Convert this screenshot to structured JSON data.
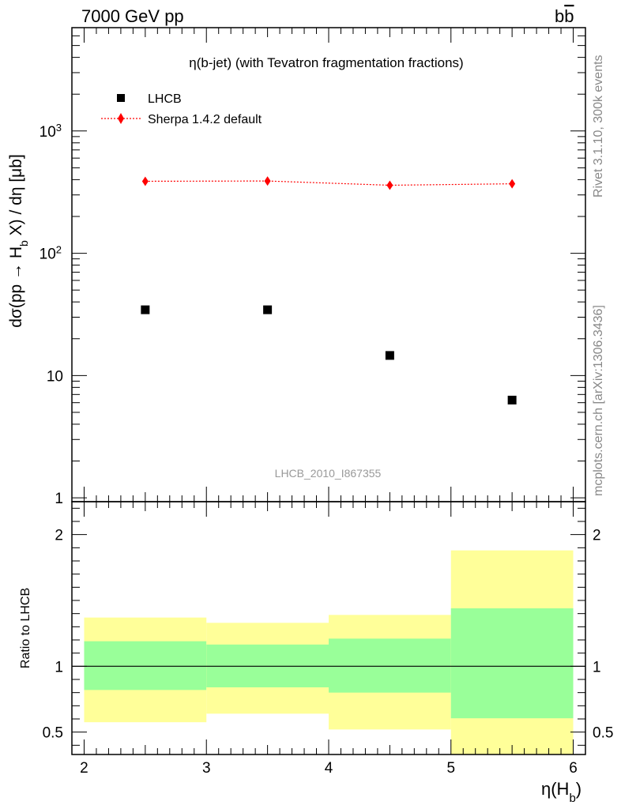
{
  "header": {
    "left": "7000 GeV pp",
    "right": "b",
    "right_bar": "b"
  },
  "side_texts": {
    "rivet": "Rivet 3.1.10,  300k events",
    "mcplots": "mcplots.cern.ch [arXiv:1306.3436]"
  },
  "chart_data": [
    {
      "type": "scatter",
      "title": "η(b-jet) (with Tevatron fragmentation fractions)",
      "watermark": "LHCB_2010_I867355",
      "ylabel": "dσ(pp → H_b X) / dη [μb]",
      "yscale": "log",
      "xlim": [
        1.9,
        6.1
      ],
      "ylim": [
        0.93,
        7000
      ],
      "ytick_labels": [
        {
          "value": 1,
          "label": "1"
        },
        {
          "value": 10,
          "label": "10"
        },
        {
          "value": 100,
          "label": "10",
          "sup": "2"
        },
        {
          "value": 1000,
          "label": "10",
          "sup": "3"
        }
      ],
      "legend_position": "top-left",
      "series": [
        {
          "name": "LHCB",
          "marker": "square",
          "color": "#000000",
          "x": [
            2.5,
            3.5,
            4.5,
            5.5
          ],
          "y": [
            34.5,
            34.5,
            14.6,
            6.3
          ]
        },
        {
          "name": "Sherpa 1.4.2 default",
          "marker": "diamond",
          "line": "dotted",
          "color": "#ff0000",
          "x": [
            2.5,
            3.5,
            4.5,
            5.5
          ],
          "y": [
            388,
            390,
            360,
            370
          ]
        }
      ]
    },
    {
      "type": "area",
      "ylabel": "Ratio to LHCB",
      "xlabel": "η(H_b)",
      "xlim": [
        1.9,
        6.1
      ],
      "ylim": [
        0.33,
        2.25
      ],
      "xtick_labels": [
        "2",
        "3",
        "4",
        "5",
        "6"
      ],
      "ytick_labels": [
        {
          "value": 0.5,
          "label": "0.5"
        },
        {
          "value": 1,
          "label": "1"
        },
        {
          "value": 2,
          "label": "2"
        }
      ],
      "reference_line": 1,
      "bands": [
        {
          "x_low": 2,
          "x_high": 3,
          "yellow": [
            0.575,
            1.37
          ],
          "green": [
            0.82,
            1.19
          ]
        },
        {
          "x_low": 3,
          "x_high": 4,
          "yellow": [
            0.64,
            1.33
          ],
          "green": [
            0.84,
            1.165
          ]
        },
        {
          "x_low": 4,
          "x_high": 5,
          "yellow": [
            0.52,
            1.39
          ],
          "green": [
            0.8,
            1.21
          ]
        },
        {
          "x_low": 5,
          "x_high": 6,
          "yellow": [
            0.33,
            1.88
          ],
          "green": [
            0.605,
            1.44
          ]
        }
      ],
      "colors": {
        "yellow": "#ffff99",
        "green": "#99ff99"
      }
    }
  ]
}
